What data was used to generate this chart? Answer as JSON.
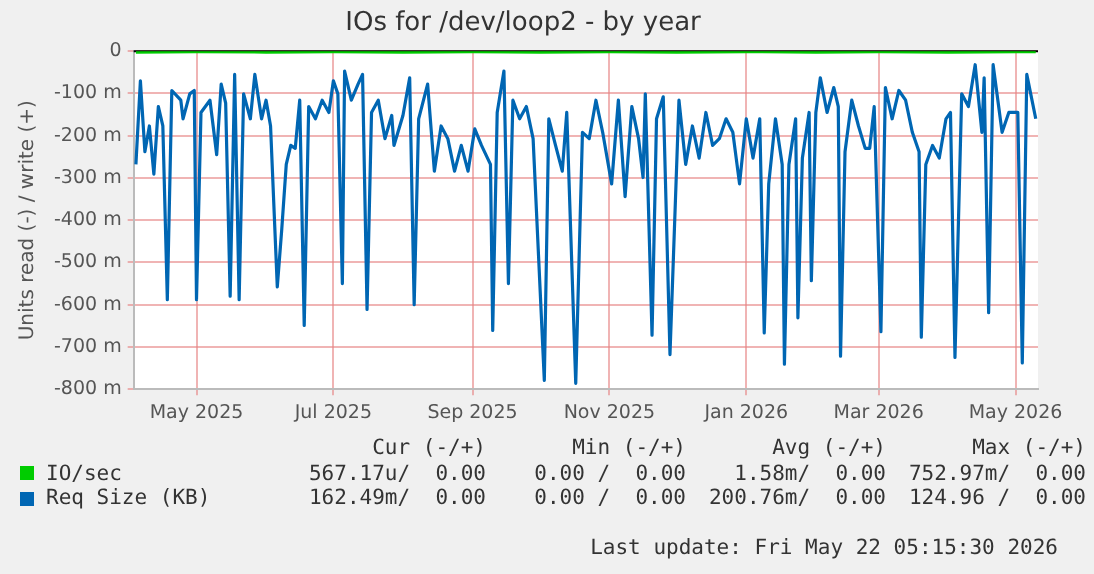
{
  "chart_data": {
    "type": "line",
    "title": "IOs for /dev/loop2 - by year",
    "ylabel": "Units read (-) / write (+)",
    "xlim": [
      "2025-04-03",
      "2026-05-11"
    ],
    "xticks": [
      {
        "value": "2025-05-01",
        "label": "May 2025"
      },
      {
        "value": "2025-07-01",
        "label": "Jul 2025"
      },
      {
        "value": "2025-09-01",
        "label": "Sep 2025"
      },
      {
        "value": "2025-11-01",
        "label": "Nov 2025"
      },
      {
        "value": "2026-01-01",
        "label": "Jan 2026"
      },
      {
        "value": "2026-03-01",
        "label": "Mar 2026"
      },
      {
        "value": "2026-05-01",
        "label": "May 2026"
      }
    ],
    "ylim": [
      -800,
      0
    ],
    "yticks": [
      {
        "value": -800,
        "label": "-800 m"
      },
      {
        "value": -700,
        "label": "-700 m"
      },
      {
        "value": -600,
        "label": "-600 m"
      },
      {
        "value": -500,
        "label": "-500 m"
      },
      {
        "value": -400,
        "label": "-400 m"
      },
      {
        "value": -300,
        "label": "-300 m"
      },
      {
        "value": -200,
        "label": "-200 m"
      },
      {
        "value": -100,
        "label": "-100 m"
      },
      0
    ],
    "grid": true,
    "legend": "bottom",
    "marker": "none",
    "line_style": "solid",
    "ref_lines": [
      {
        "axis": "y",
        "value": 0,
        "color": "#000000"
      }
    ],
    "series": [
      {
        "name": "IO/sec",
        "color": "#00cc00",
        "x": [
          "2025-04-04",
          "2025-05-01",
          "2025-06-01",
          "2025-07-01",
          "2025-08-01",
          "2025-09-01",
          "2025-10-01",
          "2025-11-01",
          "2025-12-01",
          "2026-01-01",
          "2026-02-01",
          "2026-03-01",
          "2026-04-01",
          "2026-05-10"
        ],
        "values": [
          -2,
          -1,
          -2,
          -1,
          -2,
          -1,
          -2,
          -1,
          -2,
          -1,
          -2,
          -1,
          -2,
          -1
        ]
      },
      {
        "name": "Req Size (KB)",
        "color": "#0066b3",
        "x": [
          "2025-04-04",
          "2025-04-06",
          "2025-04-08",
          "2025-04-10",
          "2025-04-12",
          "2025-04-14",
          "2025-04-16",
          "2025-04-18",
          "2025-04-20",
          "2025-04-24",
          "2025-04-25",
          "2025-04-28",
          "2025-04-30",
          "2025-05-01",
          "2025-05-03",
          "2025-05-07",
          "2025-05-10",
          "2025-05-12",
          "2025-05-14",
          "2025-05-16",
          "2025-05-18",
          "2025-05-20",
          "2025-05-22",
          "2025-05-25",
          "2025-05-27",
          "2025-05-30",
          "2025-06-01",
          "2025-06-03",
          "2025-06-06",
          "2025-06-08",
          "2025-06-10",
          "2025-06-12",
          "2025-06-14",
          "2025-06-16",
          "2025-06-18",
          "2025-06-20",
          "2025-06-23",
          "2025-06-26",
          "2025-06-29",
          "2025-07-01",
          "2025-07-03",
          "2025-07-05",
          "2025-07-06",
          "2025-07-09",
          "2025-07-12",
          "2025-07-14",
          "2025-07-16",
          "2025-07-18",
          "2025-07-21",
          "2025-07-24",
          "2025-07-27",
          "2025-07-28",
          "2025-08-01",
          "2025-08-04",
          "2025-08-06",
          "2025-08-08",
          "2025-08-12",
          "2025-08-15",
          "2025-08-18",
          "2025-08-21",
          "2025-08-24",
          "2025-08-27",
          "2025-08-30",
          "2025-09-02",
          "2025-09-05",
          "2025-09-09",
          "2025-09-10",
          "2025-09-12",
          "2025-09-15",
          "2025-09-17",
          "2025-09-19",
          "2025-09-22",
          "2025-09-25",
          "2025-09-28",
          "2025-10-03",
          "2025-10-05",
          "2025-10-08",
          "2025-10-11",
          "2025-10-13",
          "2025-10-17",
          "2025-10-20",
          "2025-10-23",
          "2025-10-26",
          "2025-10-29",
          "2025-11-02",
          "2025-11-05",
          "2025-11-08",
          "2025-11-11",
          "2025-11-14",
          "2025-11-16",
          "2025-11-17",
          "2025-11-20",
          "2025-11-22",
          "2025-11-25",
          "2025-11-28",
          "2025-12-02",
          "2025-12-05",
          "2025-12-08",
          "2025-12-11",
          "2025-12-14",
          "2025-12-17",
          "2025-12-20",
          "2025-12-23",
          "2025-12-26",
          "2025-12-29",
          "2026-01-01",
          "2026-01-04",
          "2026-01-07",
          "2026-01-09",
          "2026-01-11",
          "2026-01-14",
          "2026-01-17",
          "2026-01-18",
          "2026-01-20",
          "2026-01-23",
          "2026-01-24",
          "2026-01-26",
          "2026-01-29",
          "2026-01-30",
          "2026-02-01",
          "2026-02-03",
          "2026-02-06",
          "2026-02-09",
          "2026-02-11",
          "2026-02-12",
          "2026-02-14",
          "2026-02-17",
          "2026-02-20",
          "2026-02-23",
          "2026-02-25",
          "2026-02-27",
          "2026-03-02",
          "2026-03-04",
          "2026-03-07",
          "2026-03-10",
          "2026-03-13",
          "2026-03-16",
          "2026-03-19",
          "2026-03-20",
          "2026-03-22",
          "2026-03-25",
          "2026-03-28",
          "2026-03-31",
          "2026-04-02",
          "2026-04-04",
          "2026-04-07",
          "2026-04-10",
          "2026-04-13",
          "2026-04-16",
          "2026-04-17",
          "2026-04-19",
          "2026-04-21",
          "2026-04-25",
          "2026-04-28",
          "2026-05-02",
          "2026-05-04",
          "2026-05-06",
          "2026-05-10"
        ],
        "values": [
          -268,
          -70,
          -238,
          -177,
          -291,
          -131,
          -177,
          -588,
          -93,
          -116,
          -160,
          -101,
          -93,
          -588,
          -145,
          -116,
          -245,
          -78,
          -123,
          -580,
          -55,
          -588,
          -101,
          -160,
          -55,
          -160,
          -116,
          -177,
          -558,
          -421,
          -268,
          -223,
          -230,
          -116,
          -649,
          -131,
          -160,
          -116,
          -145,
          -70,
          -101,
          -550,
          -47,
          -116,
          -78,
          -55,
          -611,
          -145,
          -116,
          -207,
          -152,
          -223,
          -152,
          -63,
          -600,
          -160,
          -78,
          -284,
          -177,
          -207,
          -284,
          -223,
          -284,
          -184,
          -223,
          -268,
          -661,
          -145,
          -47,
          -550,
          -116,
          -160,
          -131,
          -207,
          -779,
          -160,
          -223,
          -284,
          -145,
          -786,
          -192,
          -207,
          -116,
          -192,
          -314,
          -116,
          -344,
          -131,
          -207,
          -299,
          -101,
          -672,
          -160,
          -108,
          -718,
          -116,
          -268,
          -177,
          -253,
          -145,
          -223,
          -207,
          -160,
          -192,
          -314,
          -160,
          -253,
          -160,
          -667,
          -314,
          -160,
          -268,
          -741,
          -268,
          -160,
          -631,
          -253,
          -145,
          -543,
          -145,
          -63,
          -145,
          -86,
          -131,
          -722,
          -238,
          -116,
          -177,
          -230,
          -230,
          -131,
          -664,
          -86,
          -160,
          -93,
          -116,
          -192,
          -238,
          -677,
          -268,
          -223,
          -253,
          -160,
          -145,
          -725,
          -101,
          -131,
          -32,
          -192,
          -63,
          -619,
          -32,
          -192,
          -145,
          -145,
          -738,
          -55,
          -160
        ]
      }
    ],
    "annotations": [
      "Cur (-/+)",
      "Min (-/+)",
      "Avg (-/+)",
      "Max (-/+)",
      "567.17u/  0.00",
      "0.00 /  0.00",
      "1.58m/  0.00",
      "752.97m/  0.00",
      "162.49m/  0.00",
      "0.00 /  0.00",
      "200.76m/  0.00",
      "124.96 /  0.00",
      "Last update: Fri May 22 05:15:30 2026"
    ]
  }
}
